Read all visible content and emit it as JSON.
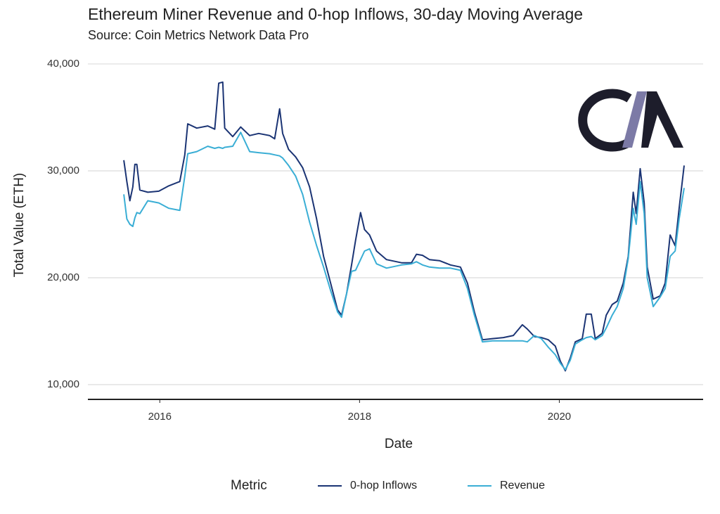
{
  "chart_data": {
    "type": "line",
    "title": "Ethereum Miner Revenue and 0-hop Inflows, 30-day Moving Average",
    "subtitle": "Source: Coin Metrics Network Data Pro",
    "x_label": "Date",
    "y_label": "Total Value (ETH)",
    "legend_title": "Metric",
    "x": [
      2015.64,
      2015.67,
      2015.7,
      2015.73,
      2015.75,
      2015.77,
      2015.8,
      2015.88,
      2015.99,
      2016.09,
      2016.2,
      2016.25,
      2016.28,
      2016.37,
      2016.48,
      2016.55,
      2016.59,
      2016.63,
      2016.65,
      2016.73,
      2016.81,
      2016.9,
      2016.99,
      2017.1,
      2017.15,
      2017.2,
      2017.23,
      2017.29,
      2017.36,
      2017.43,
      2017.5,
      2017.57,
      2017.64,
      2017.71,
      2017.78,
      2017.82,
      2017.87,
      2017.92,
      2017.96,
      2018.01,
      2018.05,
      2018.1,
      2018.17,
      2018.27,
      2018.42,
      2018.52,
      2018.57,
      2018.63,
      2018.7,
      2018.8,
      2018.91,
      2019.01,
      2019.08,
      2019.15,
      2019.23,
      2019.33,
      2019.44,
      2019.54,
      2019.63,
      2019.68,
      2019.75,
      2019.82,
      2019.89,
      2019.96,
      2020.01,
      2020.06,
      2020.11,
      2020.16,
      2020.23,
      2020.27,
      2020.32,
      2020.36,
      2020.43,
      2020.47,
      2020.53,
      2020.58,
      2020.64,
      2020.69,
      2020.74,
      2020.77,
      2020.81,
      2020.85,
      2020.88,
      2020.94,
      2021.01,
      2021.06,
      2021.11,
      2021.16,
      2021.2,
      2021.25
    ],
    "series": [
      {
        "name": "0-hop Inflows",
        "color": "#1b3474",
        "values": [
          31000,
          29000,
          27200,
          28500,
          30600,
          30600,
          28200,
          28000,
          28100,
          28600,
          29000,
          31500,
          34400,
          34000,
          34200,
          33900,
          38200,
          38300,
          34000,
          33200,
          34100,
          33300,
          33500,
          33300,
          33000,
          35800,
          33500,
          32000,
          31300,
          30300,
          28500,
          25500,
          22000,
          19500,
          17000,
          16500,
          18500,
          21200,
          23500,
          26100,
          24500,
          24000,
          22500,
          21700,
          21400,
          21400,
          22200,
          22100,
          21700,
          21600,
          21200,
          21000,
          19500,
          16800,
          14200,
          14300,
          14400,
          14600,
          15600,
          15200,
          14500,
          14400,
          14200,
          13600,
          12200,
          11300,
          12500,
          14000,
          14300,
          16600,
          16600,
          14300,
          14800,
          16500,
          17500,
          17800,
          19500,
          22000,
          28000,
          26000,
          30200,
          27000,
          21000,
          18000,
          18300,
          19500,
          24000,
          23000,
          26500,
          30500
        ]
      },
      {
        "name": "Revenue",
        "color": "#3aaed5",
        "values": [
          27800,
          25500,
          25000,
          24800,
          25600,
          26100,
          26000,
          27200,
          27000,
          26500,
          26300,
          29500,
          31600,
          31800,
          32300,
          32100,
          32200,
          32100,
          32200,
          32300,
          33600,
          31800,
          31700,
          31600,
          31500,
          31400,
          31200,
          30500,
          29500,
          27800,
          25200,
          23000,
          21000,
          18800,
          16800,
          16300,
          18500,
          20600,
          20700,
          21700,
          22500,
          22700,
          21300,
          20900,
          21200,
          21300,
          21500,
          21200,
          21000,
          20900,
          20900,
          20700,
          19000,
          16500,
          14000,
          14100,
          14100,
          14100,
          14100,
          14000,
          14600,
          14300,
          13500,
          12800,
          12000,
          11400,
          12300,
          13800,
          14200,
          14400,
          14500,
          14200,
          14600,
          15300,
          16500,
          17300,
          19000,
          21800,
          26500,
          25000,
          29000,
          26000,
          20000,
          17300,
          18200,
          19000,
          22000,
          22500,
          25500,
          28400
        ]
      }
    ],
    "xlim": [
      2015.28,
      2021.44
    ],
    "xticks": [
      2016,
      2018,
      2020
    ],
    "ylim": [
      8620,
      40720
    ],
    "yticks": [
      {
        "value": 10000,
        "label": "10,000"
      },
      {
        "value": 20000,
        "label": "20,000"
      },
      {
        "value": 30000,
        "label": "30,000"
      },
      {
        "value": 40000,
        "label": "40,000"
      }
    ],
    "grid": true,
    "legend": "bottom"
  }
}
